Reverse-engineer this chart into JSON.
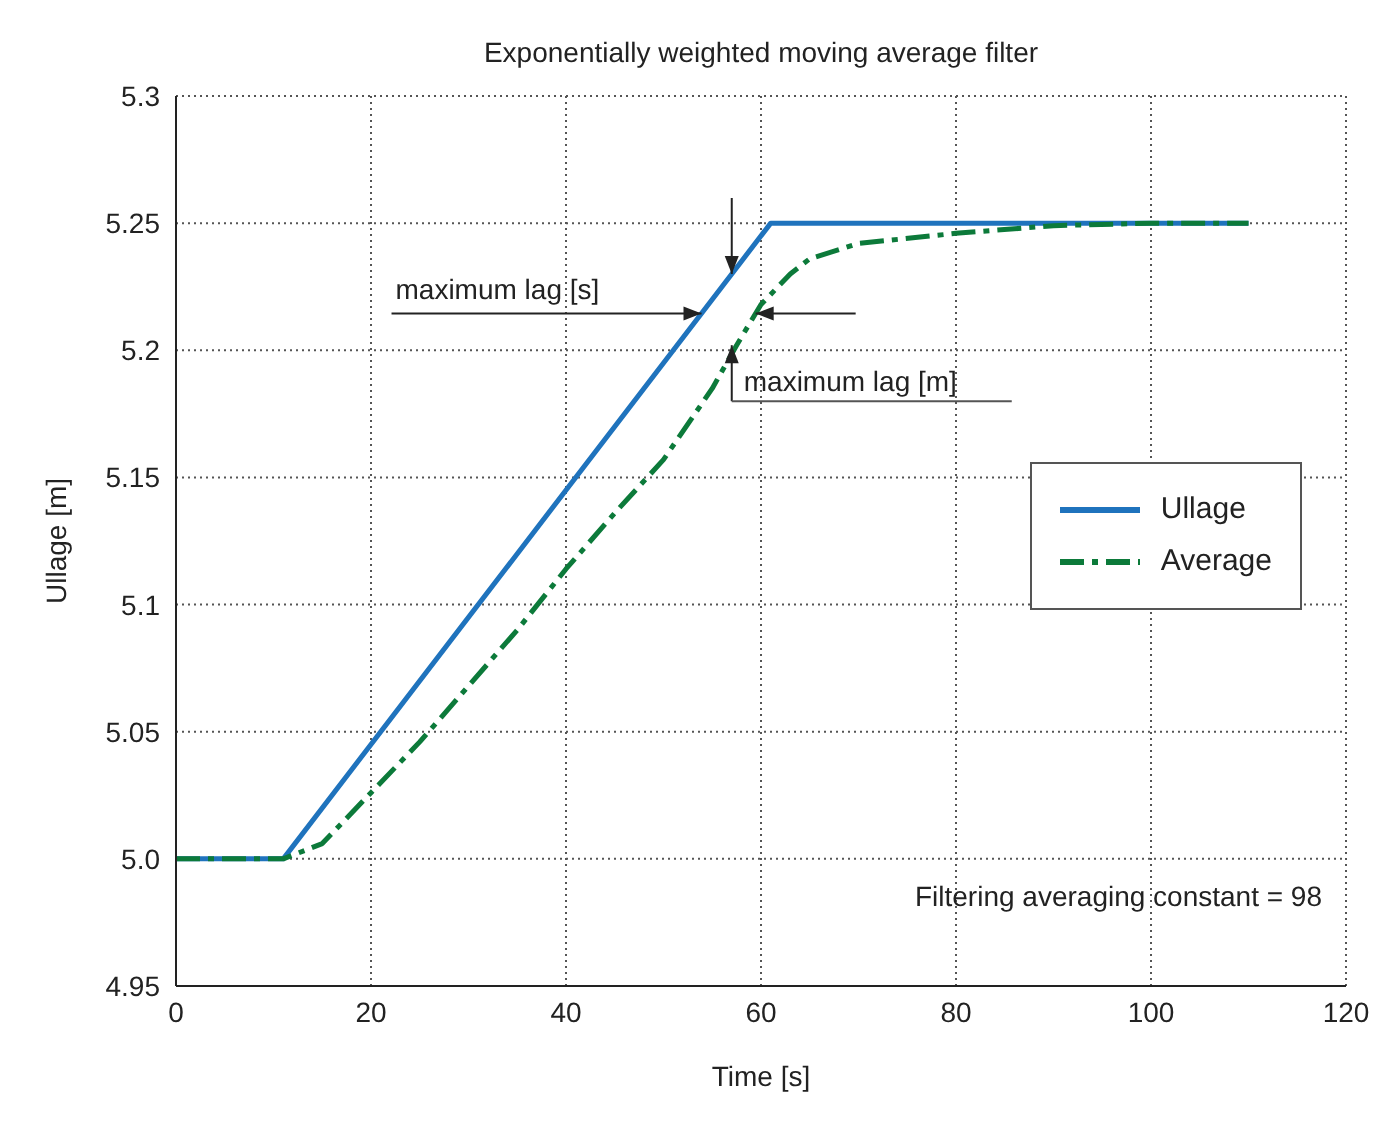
{
  "chart_data": {
    "type": "line",
    "title": "Exponentially weighted moving average filter",
    "xlabel": "Time [s]",
    "ylabel": "Ullage [m]",
    "xlim": [
      0,
      120
    ],
    "xticks": [
      0,
      20,
      40,
      60,
      80,
      100,
      120
    ],
    "ylim": [
      4.95,
      5.3
    ],
    "yticks": [
      4.95,
      {
        "value": 5,
        "label": "5.0"
      },
      5.05,
      5.1,
      5.15,
      5.2,
      5.25,
      5.3
    ],
    "grid": true,
    "legend": "right",
    "marker": "none",
    "series": [
      {
        "name": "Ullage",
        "color": "#1f73bd",
        "line_style": "solid",
        "x": [
          0,
          11,
          61,
          110
        ],
        "values": [
          5.0,
          5.0,
          5.25,
          5.25
        ]
      },
      {
        "name": "Average",
        "color": "#0c7a3a",
        "line_style": "dashed",
        "x": [
          0,
          11,
          15,
          20,
          25,
          30,
          35,
          40,
          45,
          50,
          55,
          57.5,
          60,
          63,
          65,
          70,
          80,
          90,
          100,
          110
        ],
        "values": [
          5.0,
          5.0,
          5.006,
          5.026,
          5.046,
          5.068,
          5.09,
          5.114,
          5.136,
          5.157,
          5.185,
          5.202,
          5.218,
          5.23,
          5.236,
          5.242,
          5.246,
          5.249,
          5.25,
          5.25
        ]
      }
    ],
    "annotations": [
      {
        "text": "maximum lag [s]",
        "x": 53.9,
        "y": 5.2145
      },
      {
        "text": "maximum lag [m]",
        "x": 57,
        "y": 5.202
      },
      "Filtering averaging constant = 98"
    ]
  }
}
